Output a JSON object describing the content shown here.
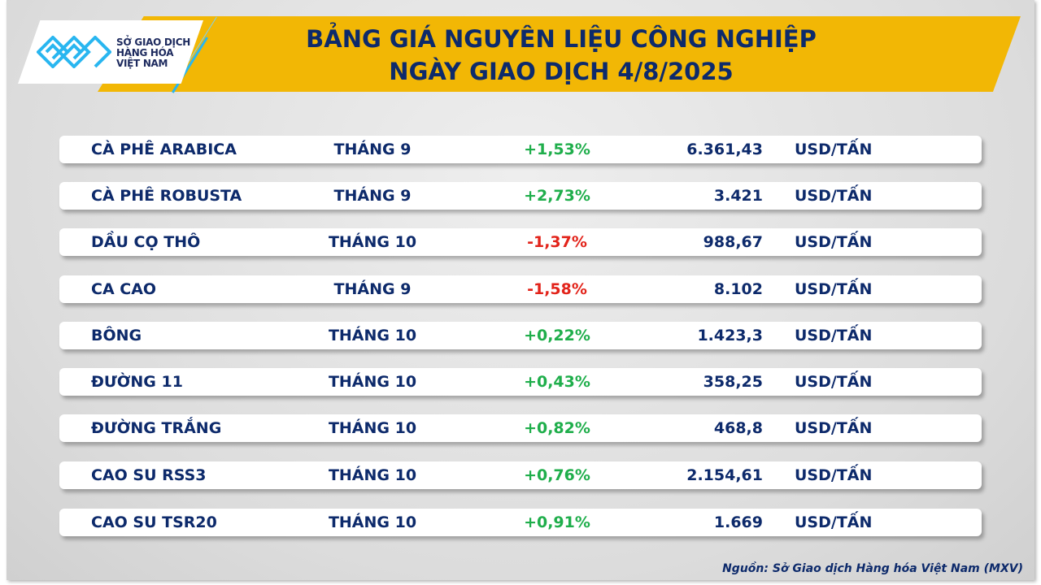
{
  "header": {
    "title_line1": "BẢNG GIÁ NGUYÊN LIỆU CÔNG NGHIỆP",
    "title_line2": "NGÀY GIAO DỊCH 4/8/2025",
    "brand_color": "#f2b705",
    "text_color": "#0d2a6b"
  },
  "logo": {
    "line1": "SỞ GIAO DỊCH",
    "line2": "HÀNG HÓA",
    "line3": "VIỆT NAM",
    "tm": "™"
  },
  "rows": [
    {
      "name": "CÀ PHÊ ARABICA",
      "month": "THÁNG 9",
      "change": "+1,53%",
      "dir": "up",
      "price": "6.361,43",
      "unit": "USD/TẤN"
    },
    {
      "name": "CÀ PHÊ ROBUSTA",
      "month": "THÁNG 9",
      "change": "+2,73%",
      "dir": "up",
      "price": "3.421",
      "unit": "USD/TẤN"
    },
    {
      "name": "DẦU CỌ THÔ",
      "month": "THÁNG 10",
      "change": "-1,37%",
      "dir": "down",
      "price": "988,67",
      "unit": "USD/TẤN"
    },
    {
      "name": "CA CAO",
      "month": "THÁNG 9",
      "change": "-1,58%",
      "dir": "down",
      "price": "8.102",
      "unit": "USD/TẤN"
    },
    {
      "name": "BÔNG",
      "month": "THÁNG 10",
      "change": "+0,22%",
      "dir": "up",
      "price": "1.423,3",
      "unit": "USD/TẤN"
    },
    {
      "name": "ĐƯỜNG 11",
      "month": "THÁNG 10",
      "change": "+0,43%",
      "dir": "up",
      "price": "358,25",
      "unit": "USD/TẤN"
    },
    {
      "name": "ĐƯỜNG TRẮNG",
      "month": "THÁNG 10",
      "change": "+0,82%",
      "dir": "up",
      "price": "468,8",
      "unit": "USD/TẤN"
    },
    {
      "name": "CAO SU RSS3",
      "month": "THÁNG 10",
      "change": "+0,76%",
      "dir": "up",
      "price": "2.154,61",
      "unit": "USD/TẤN"
    },
    {
      "name": "CAO SU TSR20",
      "month": "THÁNG 10",
      "change": "+0,91%",
      "dir": "up",
      "price": "1.669",
      "unit": "USD/TẤN"
    }
  ],
  "colors": {
    "up": "#1fae4b",
    "down": "#e2231a"
  },
  "footer": {
    "source": "Nguồn: Sở Giao dịch Hàng hóa Việt Nam (MXV)"
  }
}
